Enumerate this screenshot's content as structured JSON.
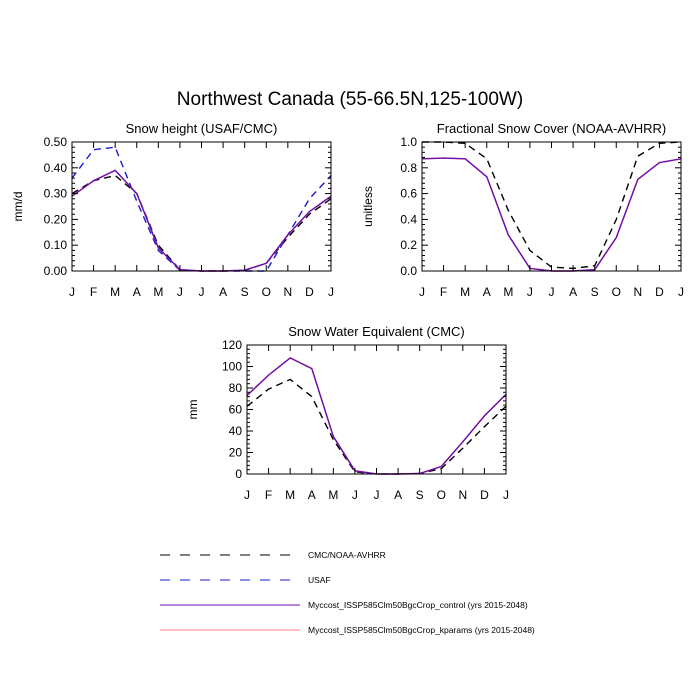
{
  "title": "Northwest Canada (55-66.5N,125-100W)",
  "months": [
    "J",
    "F",
    "M",
    "A",
    "M",
    "J",
    "J",
    "A",
    "S",
    "O",
    "N",
    "D",
    "J"
  ],
  "colors": {
    "cmc_obs": "#000000",
    "usaf": "#1a1acc",
    "control": "#6a0dad",
    "kparams": "#ff8080"
  },
  "legend": [
    {
      "label": "CMC/NOAA-AVHRR",
      "color": "#000000",
      "dash": "dashed"
    },
    {
      "label": "USAF",
      "color": "#1a1acc",
      "dash": "dashed"
    },
    {
      "label": "Myccost_ISSP585Clm50BgcCrop_control (yrs 2015-2048)",
      "color": "#6a0dad",
      "dash": "solid"
    },
    {
      "label": "Myccost_ISSP585Clm50BgcCrop_kparams (yrs 2015-2048)",
      "color": "#ff8080",
      "dash": "solid"
    }
  ],
  "chart_data": [
    {
      "type": "line",
      "title": "Snow height (USAF/CMC)",
      "ylabel": "mm/d",
      "ylim": [
        0,
        0.5
      ],
      "yticks": [
        "0.00",
        "0.10",
        "0.20",
        "0.30",
        "0.40",
        "0.50"
      ],
      "ytick_values": [
        0,
        0.1,
        0.2,
        0.3,
        0.4,
        0.5
      ],
      "categories": [
        "J",
        "F",
        "M",
        "A",
        "M",
        "J",
        "J",
        "A",
        "S",
        "O",
        "N",
        "D",
        "J"
      ],
      "series": [
        {
          "name": "CMC/NOAA-AVHRR",
          "color": "#000000",
          "dash": "dashed",
          "values": [
            0.3,
            0.35,
            0.37,
            0.3,
            0.1,
            0.005,
            0.0,
            0.0,
            0.002,
            0.03,
            0.13,
            0.22,
            0.28
          ]
        },
        {
          "name": "USAF",
          "color": "#1a1acc",
          "dash": "dashed",
          "values": [
            0.36,
            0.47,
            0.48,
            0.27,
            0.08,
            0.003,
            0.0,
            0.0,
            0.0,
            0.0,
            0.14,
            0.28,
            0.37
          ]
        },
        {
          "name": "Myccost_ISSP585Clm50BgcCrop_kparams (yrs 2015-2048)",
          "color": "#ff8080",
          "dash": "solid",
          "values": [
            0.29,
            0.35,
            0.39,
            0.3,
            0.09,
            0.005,
            0.0,
            0.0,
            0.003,
            0.03,
            0.14,
            0.23,
            0.29
          ]
        },
        {
          "name": "Myccost_ISSP585Clm50BgcCrop_control (yrs 2015-2048)",
          "color": "#6a0dad",
          "dash": "solid",
          "values": [
            0.29,
            0.35,
            0.39,
            0.3,
            0.09,
            0.005,
            0.0,
            0.0,
            0.003,
            0.03,
            0.14,
            0.23,
            0.29
          ]
        }
      ]
    },
    {
      "type": "line",
      "title": "Fractional Snow Cover (NOAA-AVHRR)",
      "ylabel": "unitless",
      "ylim": [
        0,
        1.0
      ],
      "yticks": [
        "0.0",
        "0.2",
        "0.4",
        "0.6",
        "0.8",
        "1.0"
      ],
      "ytick_values": [
        0,
        0.2,
        0.4,
        0.6,
        0.8,
        1.0
      ],
      "categories": [
        "J",
        "F",
        "M",
        "A",
        "M",
        "J",
        "J",
        "A",
        "S",
        "O",
        "N",
        "D",
        "J"
      ],
      "series": [
        {
          "name": "CMC/NOAA-AVHRR",
          "color": "#000000",
          "dash": "dashed",
          "values": [
            1.0,
            1.0,
            0.99,
            0.87,
            0.47,
            0.16,
            0.03,
            0.02,
            0.04,
            0.4,
            0.89,
            0.99,
            1.0
          ]
        },
        {
          "name": "Myccost_ISSP585Clm50BgcCrop_kparams (yrs 2015-2048)",
          "color": "#ff8080",
          "dash": "solid",
          "values": [
            0.87,
            0.875,
            0.87,
            0.73,
            0.28,
            0.02,
            0.0,
            0.0,
            0.01,
            0.26,
            0.71,
            0.84,
            0.87
          ]
        },
        {
          "name": "Myccost_ISSP585Clm50BgcCrop_control (yrs 2015-2048)",
          "color": "#6a0dad",
          "dash": "solid",
          "values": [
            0.87,
            0.875,
            0.87,
            0.73,
            0.28,
            0.02,
            0.0,
            0.0,
            0.01,
            0.26,
            0.71,
            0.84,
            0.87
          ]
        }
      ]
    },
    {
      "type": "line",
      "title": "Snow Water Equivalent (CMC)",
      "ylabel": "mm",
      "ylim": [
        0,
        120
      ],
      "yticks": [
        "0",
        "20",
        "40",
        "60",
        "80",
        "100",
        "120"
      ],
      "ytick_values": [
        0,
        20,
        40,
        60,
        80,
        100,
        120
      ],
      "categories": [
        "J",
        "F",
        "M",
        "A",
        "M",
        "J",
        "J",
        "A",
        "S",
        "O",
        "N",
        "D",
        "J"
      ],
      "series": [
        {
          "name": "CMC/NOAA-AVHRR",
          "color": "#000000",
          "dash": "dashed",
          "values": [
            63,
            79,
            88,
            72,
            32,
            2,
            0,
            0,
            0.5,
            5,
            24,
            44,
            63
          ]
        },
        {
          "name": "Myccost_ISSP585Clm50BgcCrop_kparams (yrs 2015-2048)",
          "color": "#ff8080",
          "dash": "solid",
          "values": [
            73,
            92,
            108,
            98,
            35,
            3,
            0,
            0,
            0.5,
            7,
            30,
            54,
            74
          ]
        },
        {
          "name": "Myccost_ISSP585Clm50BgcCrop_control (yrs 2015-2048)",
          "color": "#6a0dad",
          "dash": "solid",
          "values": [
            73,
            92,
            108,
            98,
            35,
            3,
            0,
            0,
            0.5,
            7,
            30,
            54,
            74
          ]
        }
      ]
    }
  ]
}
